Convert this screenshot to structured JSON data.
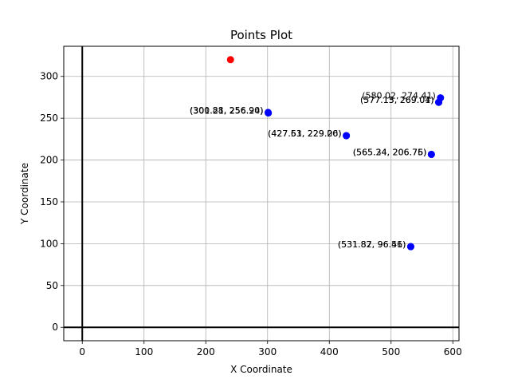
{
  "chart_data": {
    "type": "scatter",
    "title": "Points Plot",
    "xlabel": "X Coordinate",
    "ylabel": "Y Coordinate",
    "xlim": [
      -30,
      610
    ],
    "ylim": [
      -16,
      336
    ],
    "xticks": [
      0,
      100,
      200,
      300,
      400,
      500,
      600
    ],
    "yticks": [
      0,
      50,
      100,
      150,
      200,
      250,
      300
    ],
    "grid": true,
    "axis_lines_at_zero": true,
    "series": [
      {
        "color": "#0000ff",
        "points": [
          {
            "x": 301.21,
            "y": 256.24
          },
          {
            "x": 300.88,
            "y": 256.9
          },
          {
            "x": 427.51,
            "y": 229.2
          },
          {
            "x": 427.63,
            "y": 229.06
          },
          {
            "x": 565.34,
            "y": 206.76
          },
          {
            "x": 565.24,
            "y": 206.75
          },
          {
            "x": 580.02,
            "y": 274.41
          },
          {
            "x": 577.15,
            "y": 269.01
          },
          {
            "x": 577.13,
            "y": 269.04
          },
          {
            "x": 531.82,
            "y": 96.56
          },
          {
            "x": 531.87,
            "y": 96.41
          }
        ]
      },
      {
        "color": "#ff0000",
        "points": [
          {
            "x": 240,
            "y": 320
          }
        ]
      }
    ],
    "annotations": [
      {
        "text": "(301.21, 256.24)",
        "x": 301.21,
        "y": 256.24
      },
      {
        "text": "(300.88, 256.90)",
        "x": 300.88,
        "y": 256.9
      },
      {
        "text": "(427.51, 229.20)",
        "x": 427.51,
        "y": 229.2
      },
      {
        "text": "(427.63, 229.06)",
        "x": 427.63,
        "y": 229.06
      },
      {
        "text": "(565.34, 206.76)",
        "x": 565.34,
        "y": 206.76
      },
      {
        "text": "(565.24, 206.75)",
        "x": 565.24,
        "y": 206.75
      },
      {
        "text": "(580.02, 274.41)",
        "x": 580.02,
        "y": 274.41
      },
      {
        "text": "(577.15, 269.01)",
        "x": 577.15,
        "y": 269.01
      },
      {
        "text": "(577.13, 269.04)",
        "x": 577.13,
        "y": 269.04
      },
      {
        "text": "(531.82, 96.56)",
        "x": 531.82,
        "y": 96.56
      },
      {
        "text": "(531.87, 96.41)",
        "x": 531.87,
        "y": 96.41
      }
    ]
  }
}
